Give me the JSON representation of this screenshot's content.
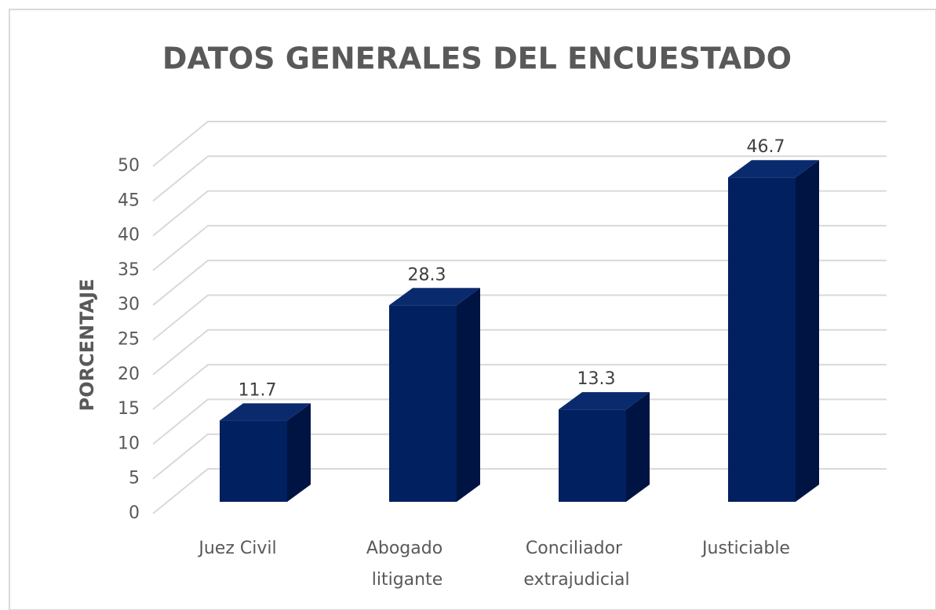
{
  "chart_data": {
    "type": "bar3d",
    "title": "DATOS GENERALES DEL ENCUESTADO",
    "y_label": "PORCENTAJE",
    "categories": [
      "Juez Civil",
      "Abogado litigante",
      "Conciliador extrajudicial",
      "Justiciable"
    ],
    "values": [
      11.7,
      28.3,
      13.3,
      46.7
    ],
    "color": "#002060",
    "ylim": [
      0,
      50
    ],
    "yticks": [
      0,
      5,
      10,
      15,
      20,
      25,
      30,
      35,
      40,
      45,
      50
    ],
    "grid": true
  }
}
